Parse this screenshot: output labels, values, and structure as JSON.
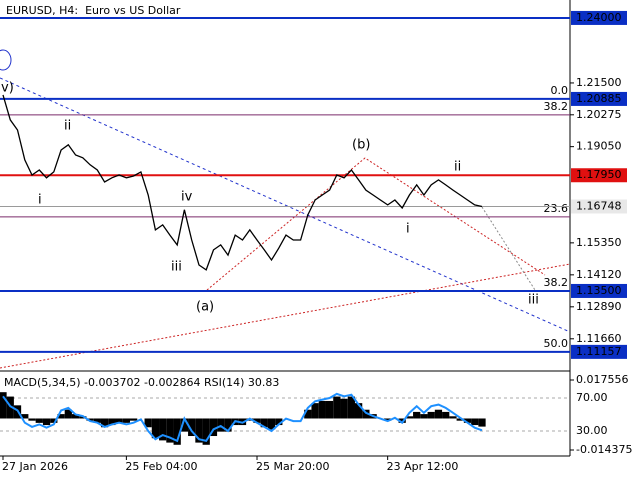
{
  "chart_data": {
    "type": "line",
    "title": "EURUSD, H4:  Euro vs US Dollar",
    "categories": [
      "27 Jan 2026",
      null,
      null,
      null,
      null,
      null,
      null,
      null,
      null,
      null,
      null,
      null,
      null,
      null,
      null,
      null,
      null,
      "25 Feb 04:00",
      null,
      null,
      null,
      null,
      null,
      null,
      null,
      null,
      null,
      null,
      null,
      null,
      null,
      null,
      null,
      null,
      null,
      "25 Mar 20:00",
      null,
      null,
      null,
      null,
      null,
      null,
      null,
      null,
      null,
      null,
      null,
      null,
      null,
      null,
      null,
      null,
      null,
      "23 Apr 12:00",
      null,
      null,
      null,
      null,
      null,
      null,
      null,
      null,
      null,
      null,
      null,
      null,
      null
    ],
    "series": [
      {
        "name": "EURUSD",
        "color": "#000000",
        "values": [
          1.2104,
          1.2008,
          1.1969,
          1.1854,
          1.1796,
          1.1815,
          1.1785,
          1.1808,
          1.1892,
          1.1912,
          1.1873,
          1.1862,
          1.1835,
          1.1815,
          1.1769,
          1.1785,
          1.1796,
          1.1785,
          1.1792,
          1.1808,
          1.1719,
          1.1585,
          1.1604,
          1.1565,
          1.1527,
          1.1662,
          1.1546,
          1.145,
          1.1431,
          1.1508,
          1.1527,
          1.1488,
          1.1565,
          1.1546,
          1.1585,
          1.1546,
          1.1508,
          1.1469,
          1.1515,
          1.1565,
          1.1546,
          1.1546,
          1.1642,
          1.17,
          1.1719,
          1.1738,
          1.1796,
          1.1785,
          1.1815,
          1.1777,
          1.1738,
          1.1719,
          1.17,
          1.1681,
          1.17,
          1.1669,
          1.1719,
          1.1758,
          1.1719,
          1.1758,
          1.1777,
          1.1758,
          1.1738,
          1.1719,
          1.17,
          1.1681,
          1.16748
        ]
      }
    ],
    "ylim": [
      1.1046,
      1.2469
    ],
    "yticks": [
      {
        "value": 1.215,
        "label": "1.21500"
      },
      {
        "value": 1.20275,
        "label": "1.20275"
      },
      {
        "value": 1.1905,
        "label": "1.19050"
      },
      {
        "value": 1.1535,
        "label": "1.15350"
      },
      {
        "value": 1.1412,
        "label": "1.14120"
      },
      {
        "value": 1.1289,
        "label": "1.12890"
      },
      {
        "value": 1.1166,
        "label": "1.11660"
      }
    ],
    "levels": [
      {
        "value": 1.24,
        "label": "1.24000",
        "color": "#0a2fc4"
      },
      {
        "value": 1.20885,
        "label": "1.20885",
        "color": "#0a2fc4"
      },
      {
        "value": 1.1795,
        "label": "1.17950",
        "color": "#e01010"
      },
      {
        "value": 1.16748,
        "label": "1.16748",
        "color": "#9a9a9a"
      },
      {
        "value": 1.135,
        "label": "1.13500",
        "color": "#0a2fc4"
      },
      {
        "value": 1.11157,
        "label": "1.11157",
        "color": "#0a2fc4"
      }
    ],
    "fib": [
      {
        "value": 1.20885,
        "label": "0.0",
        "line": false
      },
      {
        "value": 1.2027,
        "label": "38.2",
        "line": true
      },
      {
        "value": 1.1635,
        "label": "23.6",
        "line": true
      },
      {
        "value": 1.135,
        "label": "38.2",
        "line": false
      },
      {
        "value": 1.11157,
        "label": "50.0",
        "line": false
      }
    ],
    "annotations": [
      "v)",
      "ii",
      "i",
      "iv",
      "iii",
      "(a)",
      "(b)",
      "i",
      "ii",
      "iii"
    ],
    "indicator": {
      "title": "MACD(5,34,5) -0.003702 -0.002864 RSI(14) 30.83",
      "macd": {
        "name": "MACD",
        "color": "#000000",
        "ylim": [
          -0.01666,
          0.02121
        ],
        "yticks": [
          0.017556,
          -0.014375
        ],
        "values": [
          0.012,
          0.01,
          0.006,
          0.002,
          -0.001,
          -0.002,
          -0.003,
          -0.002,
          0.002,
          0.004,
          0.002,
          0.001,
          -0.001,
          -0.002,
          -0.004,
          -0.003,
          -0.002,
          -0.002,
          -0.001,
          0.0,
          -0.004,
          -0.009,
          -0.01,
          -0.011,
          -0.012,
          -0.006,
          -0.008,
          -0.011,
          -0.012,
          -0.008,
          -0.006,
          -0.006,
          -0.003,
          -0.003,
          -0.001,
          -0.002,
          -0.004,
          -0.005,
          -0.003,
          0.0,
          0.0,
          0.0,
          0.004,
          0.007,
          0.008,
          0.008,
          0.01,
          0.009,
          0.01,
          0.007,
          0.004,
          0.002,
          0.0,
          -0.001,
          0.0,
          -0.002,
          0.001,
          0.003,
          0.002,
          0.003,
          0.004,
          0.003,
          0.001,
          -0.001,
          -0.002,
          -0.003,
          -0.003702
        ]
      },
      "rsi": {
        "name": "RSI",
        "color": "#1e90ff",
        "ylim": [
          0.9,
          101.5
        ],
        "yticks": [
          {
            "value": 70,
            "label": "70.00"
          },
          {
            "value": 30,
            "label": "30.00"
          }
        ],
        "values": [
          72,
          60,
          55,
          40,
          35,
          38,
          34,
          38,
          55,
          58,
          50,
          48,
          42,
          40,
          35,
          38,
          40,
          38,
          40,
          44,
          30,
          20,
          25,
          22,
          18,
          45,
          30,
          20,
          18,
          32,
          36,
          30,
          42,
          40,
          45,
          40,
          35,
          30,
          38,
          45,
          42,
          42,
          58,
          66,
          68,
          70,
          75,
          72,
          74,
          62,
          52,
          48,
          45,
          42,
          46,
          40,
          52,
          60,
          52,
          60,
          62,
          58,
          52,
          46,
          40,
          34,
          30.83
        ]
      }
    }
  }
}
